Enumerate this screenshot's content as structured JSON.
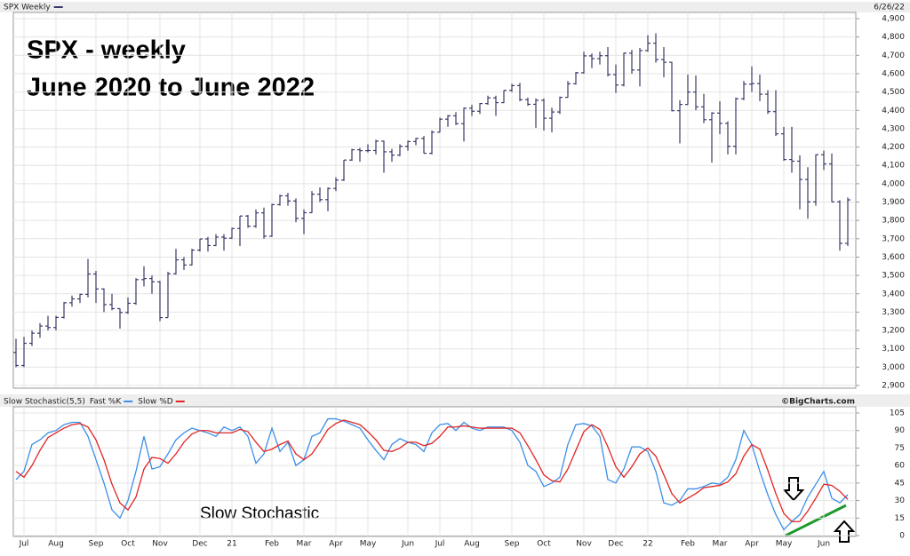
{
  "chart_data": [
    {
      "type": "ohlc",
      "date": "6/26/22",
      "annotations": [
        "SPX - weekly",
        "June 2020 to June 2022"
      ],
      "ylim": [
        2900,
        4900
      ],
      "yticks": [
        {
          "value": 2900,
          "label": "2,900"
        },
        {
          "value": 3000,
          "label": "3,000"
        },
        {
          "value": 3100,
          "label": "3,100"
        },
        {
          "value": 3200,
          "label": "3,200"
        },
        {
          "value": 3300,
          "label": "3,300"
        },
        {
          "value": 3400,
          "label": "3,400"
        },
        {
          "value": 3500,
          "label": "3,500"
        },
        {
          "value": 3600,
          "label": "3,600"
        },
        {
          "value": 3700,
          "label": "3,700"
        },
        {
          "value": 3800,
          "label": "3,800"
        },
        {
          "value": 3900,
          "label": "3,900"
        },
        {
          "value": 4000,
          "label": "4,000"
        },
        {
          "value": 4100,
          "label": "4,100"
        },
        {
          "value": 4200,
          "label": "4,200"
        },
        {
          "value": 4300,
          "label": "4,300"
        },
        {
          "value": 4400,
          "label": "4,400"
        },
        {
          "value": 4500,
          "label": "4,500"
        },
        {
          "value": 4600,
          "label": "4,600"
        },
        {
          "value": 4700,
          "label": "4,700"
        },
        {
          "value": 4800,
          "label": "4,800"
        },
        {
          "value": 4900,
          "label": "4,900"
        }
      ],
      "grid": true,
      "series": [
        {
          "name": "SPX Weekly",
          "color": "#3a3a6a",
          "open": [
            3080,
            3009,
            3130,
            3185,
            3224,
            3216,
            3271,
            3351,
            3372,
            3397,
            3508,
            3426,
            3341,
            3319,
            3298,
            3348,
            3477,
            3483,
            3465,
            3270,
            3509,
            3585,
            3557,
            3638,
            3699,
            3663,
            3709,
            3703,
            3756,
            3824,
            3768,
            3841,
            3714,
            3886,
            3934,
            3906,
            3811,
            3842,
            3943,
            3913,
            3974,
            4020,
            4129,
            4185,
            4180,
            4181,
            4232,
            4174,
            4156,
            4204,
            4230,
            4247,
            4166,
            4281,
            4352,
            4370,
            4327,
            4412,
            4395,
            4437,
            4468,
            4442,
            4509,
            4535,
            4458,
            4433,
            4455,
            4357,
            4391,
            4471,
            4545,
            4605,
            4697,
            4682,
            4698,
            4595,
            4538,
            4712,
            4620,
            4726,
            4766,
            4677,
            4662,
            4398,
            4432,
            4500,
            4419,
            4349,
            4385,
            4329,
            4204,
            4463,
            4543,
            4546,
            4488,
            4393,
            4272,
            4132,
            4123,
            4023,
            3901,
            4158,
            4108,
            3901,
            3675
          ],
          "high": [
            3155,
            3165,
            3200,
            3240,
            3280,
            3280,
            3355,
            3390,
            3400,
            3590,
            3525,
            3430,
            3400,
            3320,
            3380,
            3485,
            3550,
            3500,
            3470,
            3520,
            3645,
            3600,
            3645,
            3700,
            3710,
            3725,
            3725,
            3760,
            3825,
            3830,
            3860,
            3870,
            3890,
            3940,
            3950,
            3920,
            3860,
            3960,
            3980,
            3980,
            4035,
            4130,
            4190,
            4195,
            4215,
            4240,
            4235,
            4190,
            4215,
            4235,
            4250,
            4260,
            4290,
            4360,
            4375,
            4390,
            4415,
            4430,
            4440,
            4480,
            4480,
            4510,
            4545,
            4550,
            4470,
            4465,
            4465,
            4415,
            4475,
            4560,
            4610,
            4720,
            4710,
            4720,
            4745,
            4650,
            4715,
            4730,
            4740,
            4810,
            4820,
            4745,
            4665,
            4455,
            4595,
            4590,
            4490,
            4390,
            4450,
            4340,
            4470,
            4560,
            4640,
            4595,
            4510,
            4510,
            4310,
            4310,
            4155,
            4090,
            4160,
            4180,
            4165,
            3910,
            3925
          ],
          "low": [
            3000,
            3000,
            3115,
            3160,
            3200,
            3200,
            3265,
            3330,
            3350,
            3380,
            3350,
            3300,
            3310,
            3210,
            3290,
            3340,
            3440,
            3400,
            3250,
            3270,
            3505,
            3530,
            3555,
            3630,
            3630,
            3660,
            3635,
            3700,
            3660,
            3760,
            3760,
            3700,
            3710,
            3880,
            3880,
            3790,
            3725,
            3840,
            3900,
            3850,
            3960,
            4015,
            4125,
            4120,
            4170,
            4160,
            4060,
            4120,
            4150,
            4180,
            4210,
            4165,
            4160,
            4280,
            4310,
            4320,
            4230,
            4370,
            4380,
            4430,
            4370,
            4440,
            4500,
            4450,
            4425,
            4305,
            4290,
            4280,
            4380,
            4470,
            4540,
            4600,
            4630,
            4650,
            4585,
            4495,
            4530,
            4600,
            4530,
            4720,
            4660,
            4580,
            4395,
            4220,
            4430,
            4400,
            4330,
            4115,
            4270,
            4160,
            4160,
            4455,
            4500,
            4450,
            4380,
            4260,
            4125,
            4060,
            3860,
            3810,
            3880,
            4075,
            3900,
            3635,
            3660
          ],
          "close": [
            3009,
            3130,
            3185,
            3224,
            3216,
            3271,
            3351,
            3372,
            3397,
            3508,
            3426,
            3341,
            3319,
            3298,
            3348,
            3477,
            3483,
            3465,
            3270,
            3509,
            3585,
            3557,
            3638,
            3699,
            3663,
            3709,
            3703,
            3756,
            3824,
            3768,
            3841,
            3714,
            3886,
            3934,
            3906,
            3811,
            3842,
            3943,
            3913,
            3974,
            4020,
            4129,
            4185,
            4180,
            4181,
            4232,
            4174,
            4156,
            4204,
            4230,
            4247,
            4166,
            4281,
            4352,
            4370,
            4327,
            4412,
            4395,
            4437,
            4468,
            4442,
            4509,
            4535,
            4458,
            4433,
            4455,
            4357,
            4391,
            4471,
            4545,
            4605,
            4697,
            4682,
            4698,
            4595,
            4538,
            4712,
            4620,
            4726,
            4766,
            4677,
            4662,
            4398,
            4432,
            4500,
            4419,
            4349,
            4385,
            4329,
            4204,
            4463,
            4543,
            4546,
            4488,
            4393,
            4272,
            4132,
            4123,
            4023,
            3901,
            4158,
            4108,
            3901,
            3675,
            3912
          ]
        }
      ]
    },
    {
      "type": "line",
      "title": "Slow Stochastic(5,5)",
      "credit": "©BigCharts.com",
      "annotations": [
        "Slow Stochastic"
      ],
      "categories": [
        null,
        "Jul",
        null,
        null,
        null,
        "Aug",
        null,
        null,
        null,
        null,
        "Sep",
        null,
        null,
        null,
        "Oct",
        null,
        null,
        null,
        "Nov",
        null,
        null,
        null,
        null,
        "Dec",
        null,
        null,
        null,
        "21",
        null,
        null,
        null,
        null,
        "Feb",
        null,
        null,
        null,
        "Mar",
        null,
        null,
        null,
        "Apr",
        null,
        null,
        null,
        "May",
        null,
        null,
        null,
        null,
        "Jun",
        null,
        null,
        null,
        "Jul",
        null,
        null,
        null,
        "Aug",
        null,
        null,
        null,
        null,
        "Sep",
        null,
        null,
        null,
        "Oct",
        null,
        null,
        null,
        null,
        "Nov",
        null,
        null,
        null,
        "Dec",
        null,
        null,
        null,
        "22",
        null,
        null,
        null,
        null,
        "Feb",
        null,
        null,
        null,
        "Mar",
        null,
        null,
        null,
        "Apr",
        null,
        null,
        null,
        "May",
        null,
        null,
        null,
        null,
        "Jun",
        null,
        null,
        null
      ],
      "ylim": [
        0,
        105
      ],
      "yticks": [
        0,
        15,
        30,
        45,
        60,
        75,
        90,
        105
      ],
      "grid": true,
      "series": [
        {
          "name": "Fast %K",
          "color": "#3b8fe8",
          "values": [
            48,
            55,
            78,
            82,
            88,
            90,
            95,
            97,
            97,
            85,
            65,
            45,
            22,
            15,
            30,
            55,
            85,
            57,
            59,
            70,
            82,
            88,
            92,
            90,
            88,
            85,
            93,
            90,
            93,
            85,
            62,
            70,
            92,
            72,
            80,
            60,
            65,
            85,
            88,
            100,
            100,
            98,
            95,
            92,
            82,
            73,
            65,
            78,
            83,
            80,
            78,
            72,
            88,
            95,
            96,
            90,
            97,
            92,
            90,
            93,
            93,
            93,
            90,
            80,
            60,
            55,
            42,
            45,
            50,
            78,
            95,
            96,
            94,
            85,
            48,
            45,
            57,
            76,
            76,
            72,
            55,
            28,
            26,
            30,
            40,
            40,
            42,
            45,
            44,
            50,
            65,
            90,
            78,
            55,
            35,
            18,
            5,
            12,
            18,
            33,
            44,
            55,
            32,
            28,
            35
          ]
        },
        {
          "name": "Slow %D",
          "color": "#e02424",
          "values": [
            55,
            50,
            60,
            73,
            84,
            88,
            92,
            95,
            96,
            93,
            82,
            65,
            44,
            28,
            22,
            33,
            57,
            67,
            66,
            62,
            70,
            80,
            87,
            90,
            90,
            88,
            88,
            88,
            91,
            89,
            80,
            72,
            74,
            78,
            81,
            70,
            65,
            70,
            80,
            91,
            96,
            99,
            97,
            95,
            89,
            82,
            73,
            72,
            75,
            80,
            80,
            77,
            79,
            85,
            93,
            93,
            94,
            93,
            92,
            92,
            92,
            92,
            92,
            88,
            77,
            65,
            52,
            47,
            46,
            57,
            73,
            89,
            95,
            91,
            76,
            59,
            50,
            59,
            70,
            75,
            68,
            52,
            36,
            28,
            32,
            36,
            41,
            42,
            43,
            46,
            53,
            68,
            78,
            74,
            56,
            36,
            19,
            12,
            12,
            21,
            32,
            44,
            43,
            38,
            31
          ]
        }
      ]
    }
  ]
}
